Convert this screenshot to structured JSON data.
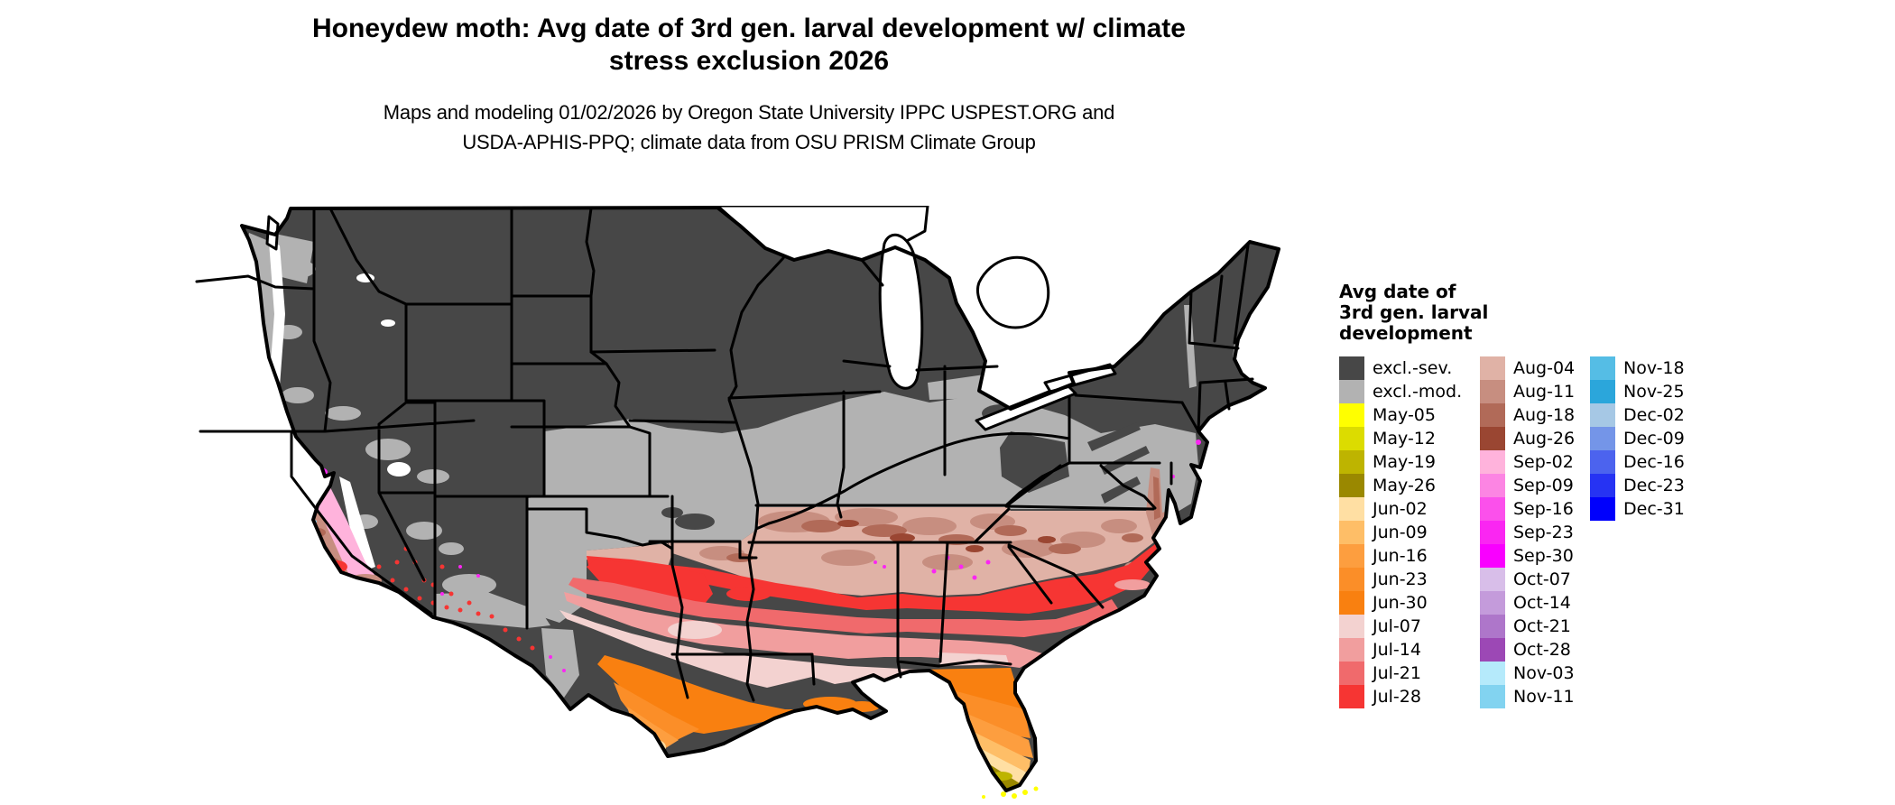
{
  "title": {
    "line1": "Honeydew moth: Avg date of 3rd gen. larval development w/ climate",
    "line2": "stress exclusion 2026"
  },
  "subtitle": {
    "line1": "Maps and modeling 01/02/2026 by Oregon State University IPPC USPEST.ORG and",
    "line2": "USDA-APHIS-PPQ; climate data from OSU PRISM Climate Group"
  },
  "legend": {
    "title": {
      "line1": "Avg date of",
      "line2": "3rd gen. larval",
      "line3": "development"
    },
    "columns": [
      {
        "entries": [
          {
            "label": "excl.-sev.",
            "color": "#474747"
          },
          {
            "label": "excl.-mod.",
            "color": "#B2B2B2"
          },
          {
            "label": "May-05",
            "color": "#FFFF00"
          },
          {
            "label": "May-12",
            "color": "#DCDC00"
          },
          {
            "label": "May-19",
            "color": "#BEB400"
          },
          {
            "label": "May-26",
            "color": "#9A8800"
          },
          {
            "label": "Jun-02",
            "color": "#FFDFA3"
          },
          {
            "label": "Jun-09",
            "color": "#FEBE67"
          },
          {
            "label": "Jun-16",
            "color": "#FD9E3F"
          },
          {
            "label": "Jun-23",
            "color": "#FB8E28"
          },
          {
            "label": "Jun-30",
            "color": "#F98010"
          },
          {
            "label": "Jul-07",
            "color": "#F3D2D0"
          },
          {
            "label": "Jul-14",
            "color": "#F19E9E"
          },
          {
            "label": "Jul-21",
            "color": "#F06A6C"
          },
          {
            "label": "Jul-28",
            "color": "#F63533"
          }
        ]
      },
      {
        "entries": [
          {
            "label": "Aug-04",
            "color": "#E0B2A6"
          },
          {
            "label": "Aug-11",
            "color": "#C78E80"
          },
          {
            "label": "Aug-18",
            "color": "#B16A58"
          },
          {
            "label": "Aug-26",
            "color": "#9A4632"
          },
          {
            "label": "Sep-02",
            "color": "#FFB3DC"
          },
          {
            "label": "Sep-09",
            "color": "#FC85E3"
          },
          {
            "label": "Sep-16",
            "color": "#FB50EB"
          },
          {
            "label": "Sep-23",
            "color": "#FA26F2"
          },
          {
            "label": "Sep-30",
            "color": "#F900FF"
          },
          {
            "label": "Oct-07",
            "color": "#D8BEE9"
          },
          {
            "label": "Oct-14",
            "color": "#C49BDB"
          },
          {
            "label": "Oct-21",
            "color": "#AE76CA"
          },
          {
            "label": "Oct-28",
            "color": "#9C48B5"
          },
          {
            "label": "Nov-03",
            "color": "#B5EAFB"
          },
          {
            "label": "Nov-11",
            "color": "#82D3F0"
          }
        ]
      },
      {
        "entries": [
          {
            "label": "Nov-18",
            "color": "#55BDE5"
          },
          {
            "label": "Nov-25",
            "color": "#2BA6DB"
          },
          {
            "label": "Dec-02",
            "color": "#A6C8E5"
          },
          {
            "label": "Dec-09",
            "color": "#7495E8"
          },
          {
            "label": "Dec-16",
            "color": "#4C63EE"
          },
          {
            "label": "Dec-23",
            "color": "#2633F3"
          },
          {
            "label": "Dec-31",
            "color": "#0000FC"
          }
        ]
      }
    ]
  }
}
